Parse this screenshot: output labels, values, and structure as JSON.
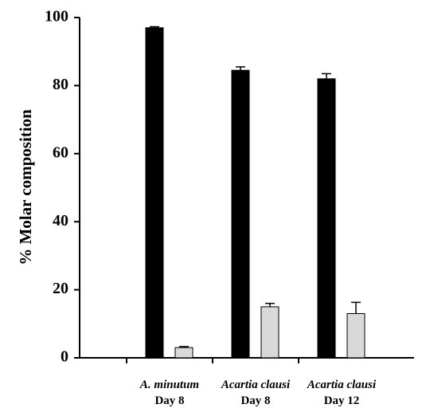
{
  "chart_data": {
    "type": "bar",
    "y_label": "% Molar composition",
    "categories": [
      [
        "A. minutum",
        "Day 8"
      ],
      [
        "Acartia clausi",
        "Day 8"
      ],
      [
        "Acartia clausi",
        "Day 12"
      ]
    ],
    "series": [
      {
        "color": "#000000",
        "values": [
          97,
          84.5,
          82
        ],
        "errors": [
          0.3,
          1,
          1.5
        ]
      },
      {
        "color": "#d9d9d9",
        "values": [
          3,
          15,
          13
        ],
        "errors": [
          0.3,
          1,
          3.3
        ]
      }
    ],
    "ylim": [
      0,
      100
    ],
    "yticks": [
      0,
      20,
      40,
      60,
      80,
      100
    ]
  }
}
